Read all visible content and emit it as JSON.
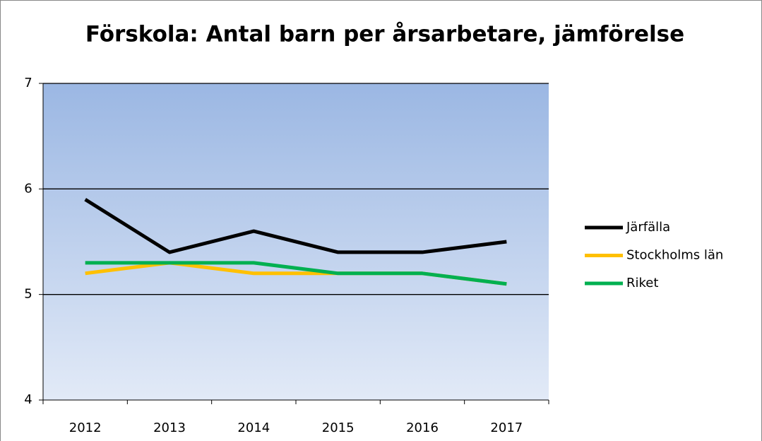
{
  "chart_data": {
    "type": "line",
    "title": "Förskola: Antal barn per årsarbetare, jämförelse",
    "categories": [
      "2012",
      "2013",
      "2014",
      "2015",
      "2016",
      "2017"
    ],
    "series": [
      {
        "name": "Järfälla",
        "color": "#000000",
        "values": [
          5.9,
          5.4,
          5.6,
          5.4,
          5.4,
          5.5
        ]
      },
      {
        "name": "Stockholms län",
        "color": "#ffc000",
        "values": [
          5.2,
          5.3,
          5.2,
          5.2,
          5.2,
          5.1
        ]
      },
      {
        "name": "Riket",
        "color": "#00b050",
        "values": [
          5.3,
          5.3,
          5.3,
          5.2,
          5.2,
          5.1
        ]
      }
    ],
    "ylim": [
      4,
      7
    ],
    "yticks": [
      4,
      5,
      6,
      7
    ],
    "grid": true,
    "legend": "right"
  }
}
